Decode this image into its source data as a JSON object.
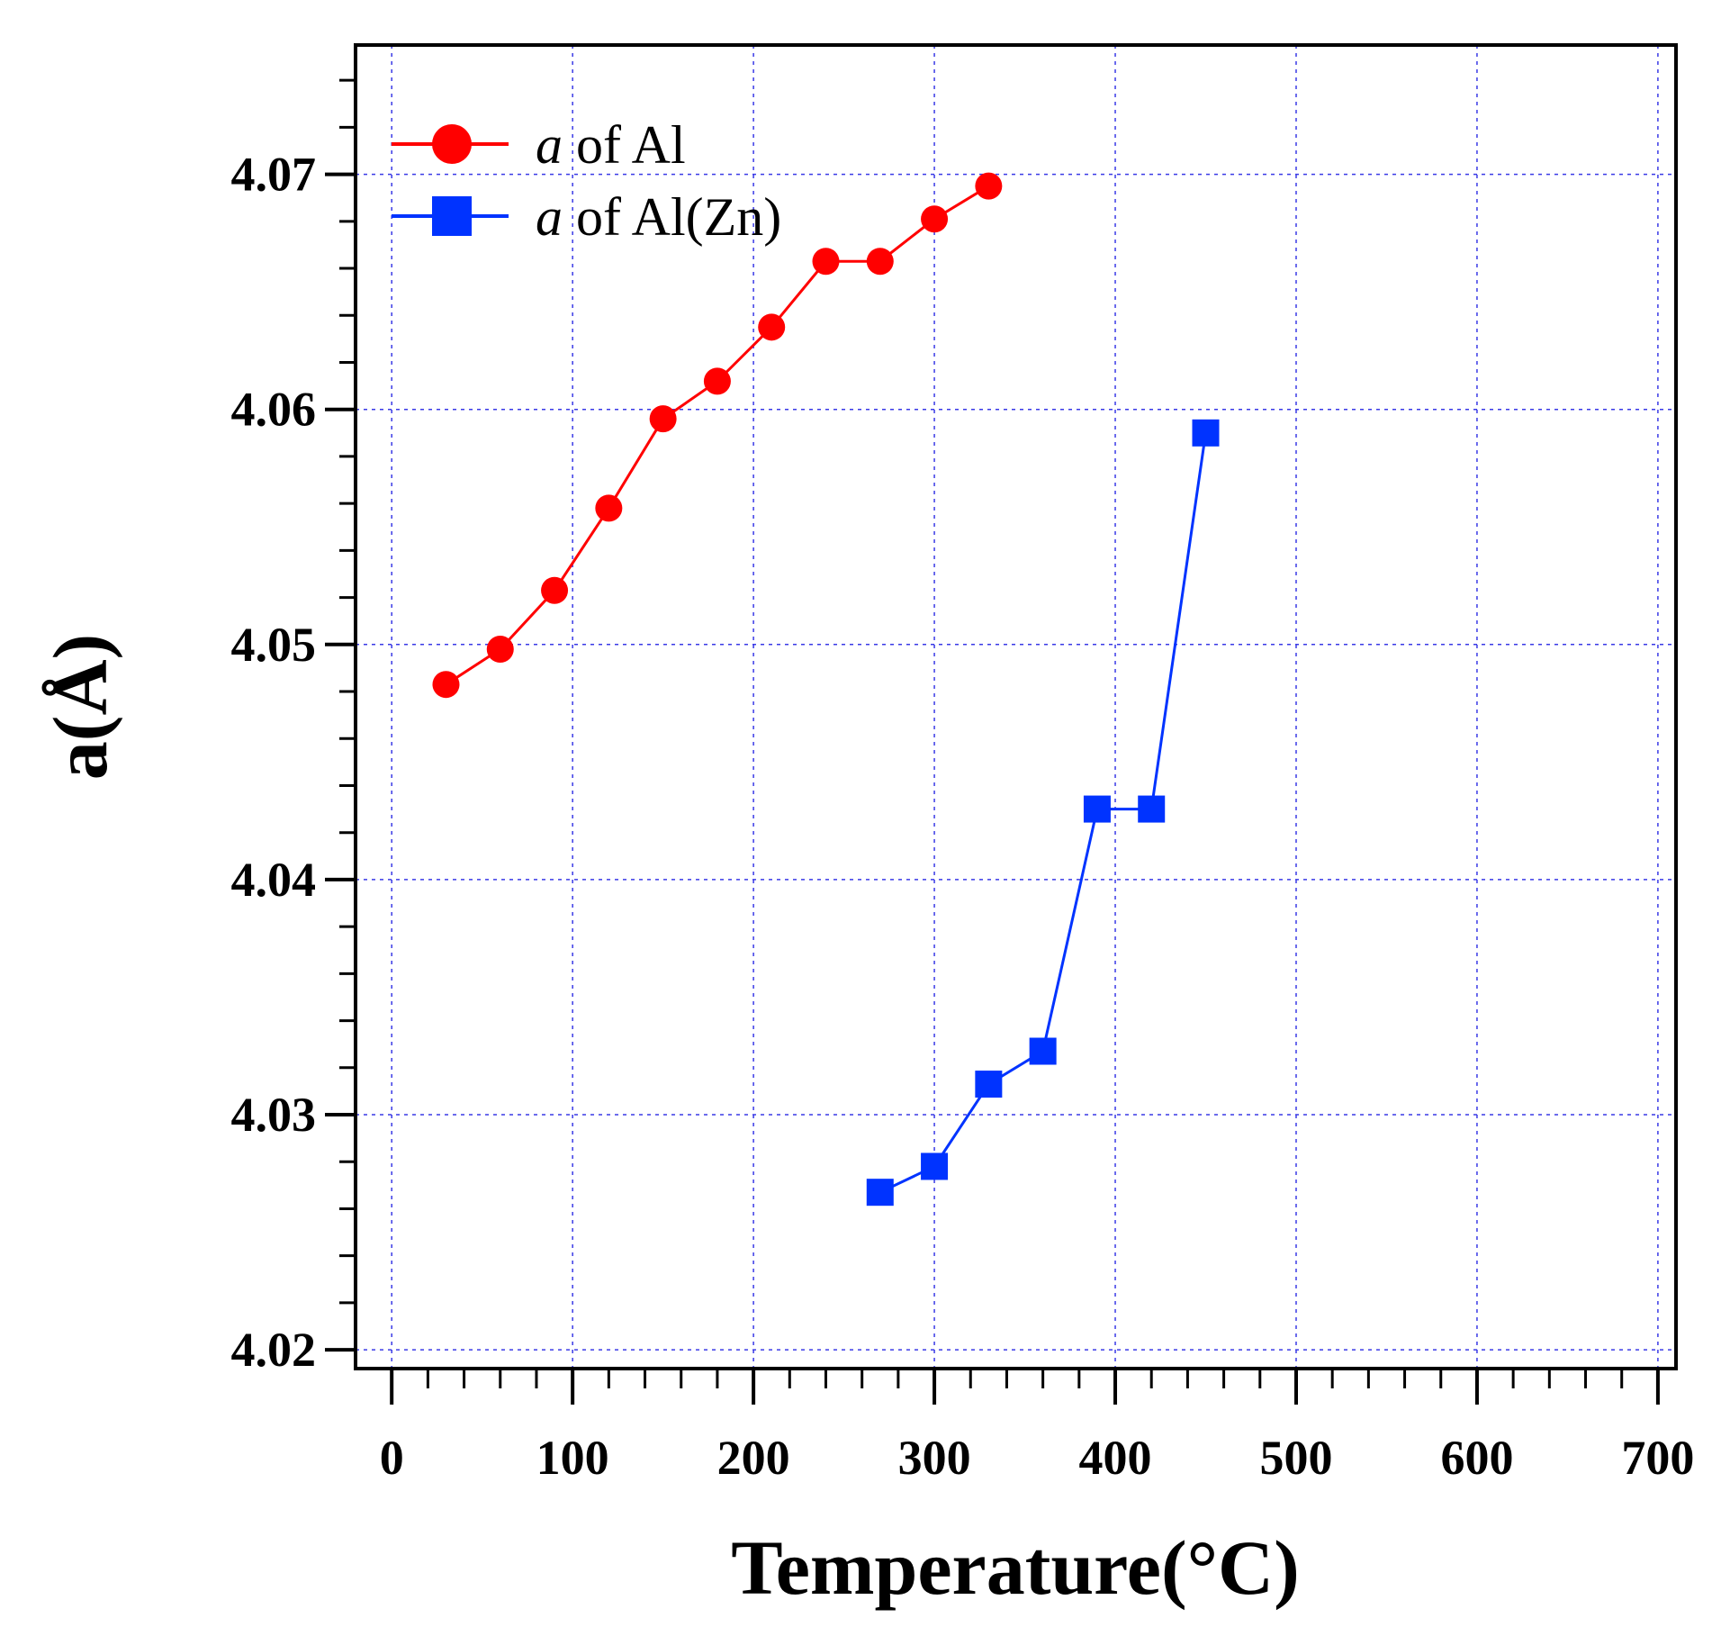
{
  "chart_data": {
    "type": "line",
    "title": "",
    "xlabel": "Temperature(°C)",
    "ylabel": "a(Å)",
    "xlim": [
      -20,
      710
    ],
    "ylim": [
      4.0192,
      4.0755
    ],
    "x_ticks": [
      0,
      100,
      200,
      300,
      400,
      500,
      600,
      700
    ],
    "x_tick_labels": [
      "0",
      "100",
      "200",
      "300",
      "400",
      "500",
      "600",
      "700"
    ],
    "y_ticks": [
      4.02,
      4.03,
      4.04,
      4.05,
      4.06,
      4.07
    ],
    "y_tick_labels": [
      "4.02",
      "4.03",
      "4.04",
      "4.05",
      "4.06",
      "4.07"
    ],
    "grid": true,
    "legend_position": "top-left",
    "series": [
      {
        "name": "a of Al",
        "legend_italic": "a",
        "legend_rest": " of Al",
        "color": "#ff0000",
        "marker": "circle",
        "x": [
          30,
          60,
          90,
          120,
          150,
          180,
          210,
          240,
          270,
          300,
          330
        ],
        "y": [
          4.0483,
          4.0498,
          4.0523,
          4.0558,
          4.0596,
          4.0612,
          4.0635,
          4.0663,
          4.0663,
          4.0681,
          4.0695
        ]
      },
      {
        "name": "a of Al(Zn)",
        "legend_italic": "a",
        "legend_rest": " of Al(Zn)",
        "color": "#0033ff",
        "marker": "square",
        "x": [
          270,
          300,
          330,
          360,
          390,
          420,
          450
        ],
        "y": [
          4.0267,
          4.0278,
          4.0313,
          4.0327,
          4.043,
          4.043,
          4.059
        ]
      }
    ]
  }
}
